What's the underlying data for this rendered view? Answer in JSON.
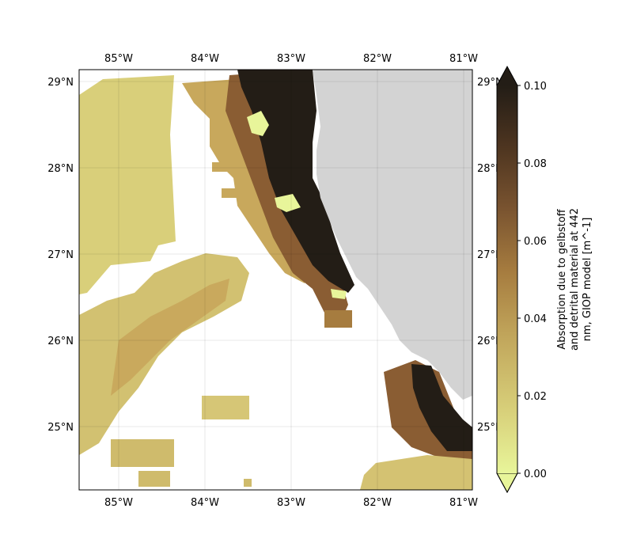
{
  "map": {
    "lon_ticks": [
      "85°W",
      "84°W",
      "83°W",
      "82°W",
      "81°W"
    ],
    "lat_ticks": [
      "29°N",
      "28°N",
      "27°N",
      "26°N",
      "25°N"
    ],
    "lon_range": [
      -85.5,
      -81.0
    ],
    "lat_range": [
      24.3,
      29.2
    ],
    "land_color": "#d3d3d3",
    "gridlines": true
  },
  "colorbar": {
    "label_lines": [
      "Absorption due to gelbstoff",
      "and detrital material at 442",
      "nm, GIOP model [m^-1]"
    ],
    "ticks": [
      "0.00",
      "0.02",
      "0.04",
      "0.06",
      "0.08",
      "0.10"
    ],
    "range": [
      0.0,
      0.1
    ],
    "extend": "both",
    "colors": [
      "#e8f59a",
      "#d8d07a",
      "#c0a45a",
      "#a67c3f",
      "#7a5430",
      "#4e3520",
      "#231d16"
    ]
  }
}
